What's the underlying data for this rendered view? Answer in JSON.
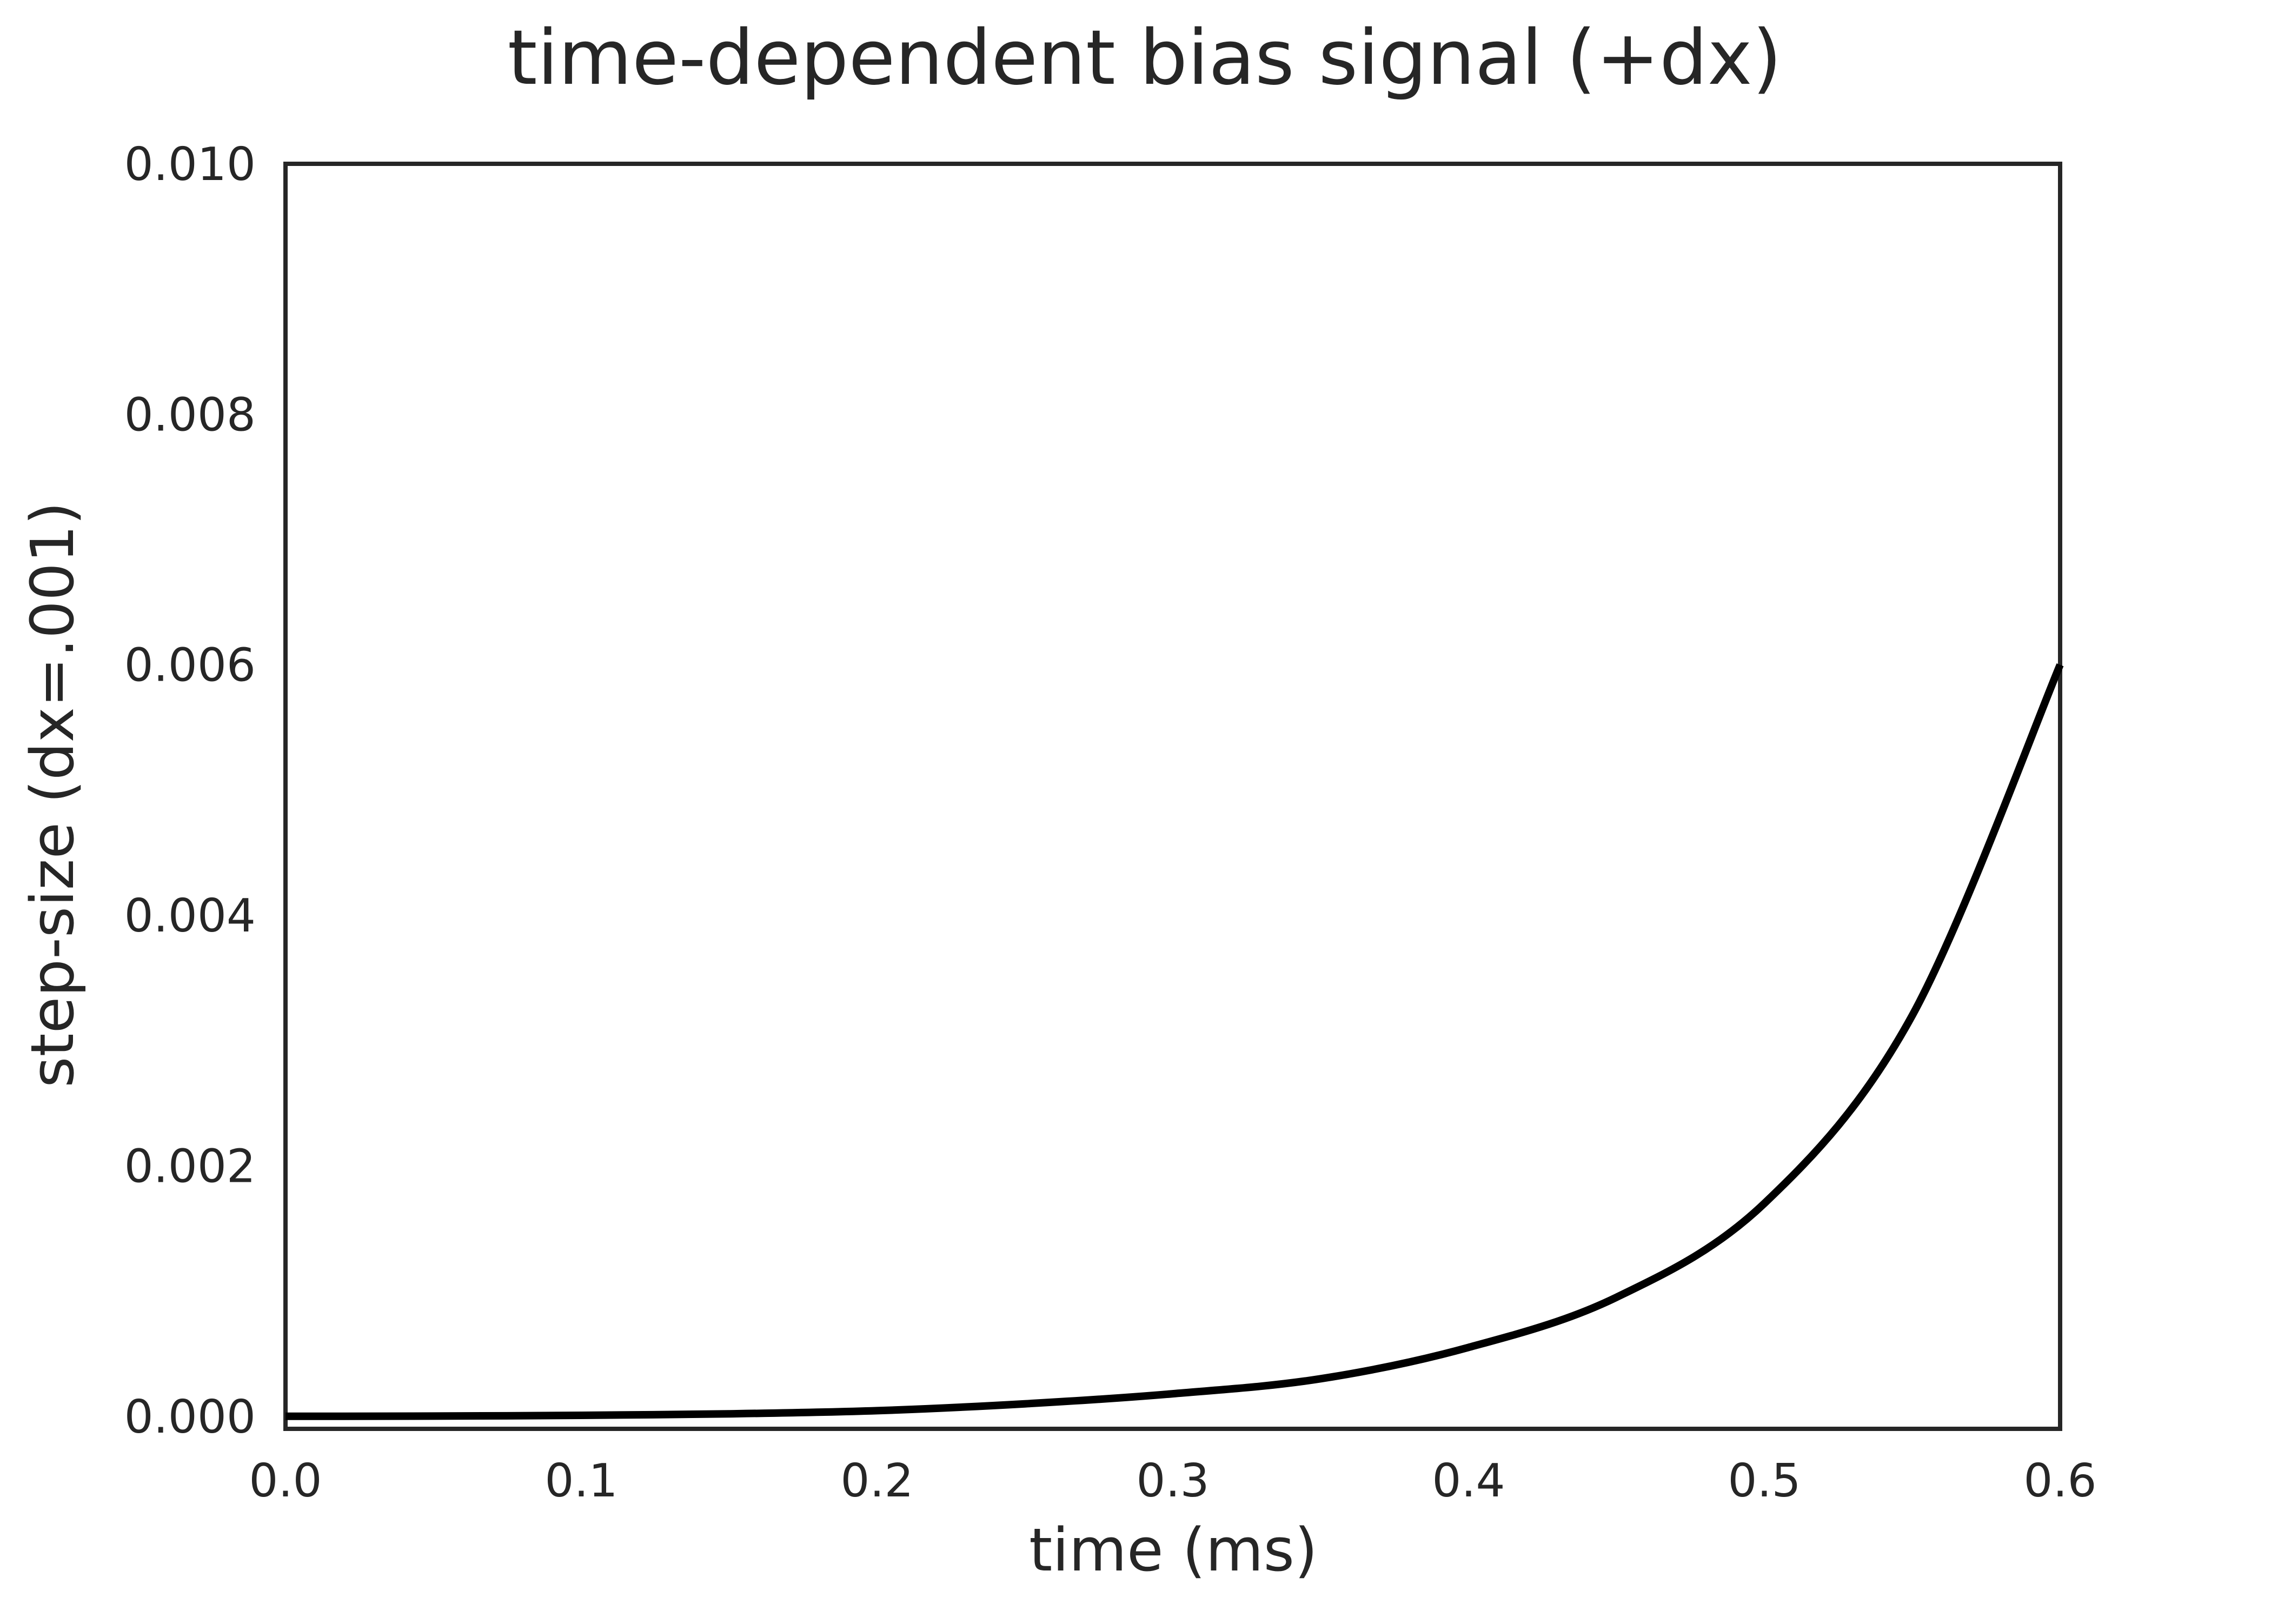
{
  "chart_data": {
    "type": "line",
    "title": "time-dependent bias signal (+dx)",
    "xlabel": "time (ms)",
    "ylabel": "step-size (dx=.001)",
    "xlim": [
      0.0,
      0.6
    ],
    "ylim": [
      -0.0001,
      0.01
    ],
    "xticks": [
      0.0,
      0.1,
      0.2,
      0.3,
      0.4,
      0.5,
      0.6
    ],
    "xtick_labels": [
      "0.0",
      "0.1",
      "0.2",
      "0.3",
      "0.4",
      "0.5",
      "0.6"
    ],
    "yticks": [
      0.0,
      0.002,
      0.004,
      0.006,
      0.008,
      0.01
    ],
    "ytick_labels": [
      "0.000",
      "0.002",
      "0.004",
      "0.006",
      "0.008",
      "0.010"
    ],
    "grid": false,
    "legend": "none",
    "colors": {
      "line": "#000000",
      "frame": "#262626",
      "text": "#262626"
    },
    "series": [
      {
        "x": [
          0.0,
          0.05,
          0.1,
          0.15,
          0.2,
          0.25,
          0.3,
          0.35,
          0.4,
          0.45,
          0.5,
          0.55,
          0.6
        ],
        "y": [
          0.0,
          2e-06,
          8e-06,
          2e-05,
          4.5e-05,
          0.0001,
          0.00018,
          0.0003,
          0.00055,
          0.00095,
          0.0017,
          0.0032,
          0.006
        ]
      }
    ]
  }
}
